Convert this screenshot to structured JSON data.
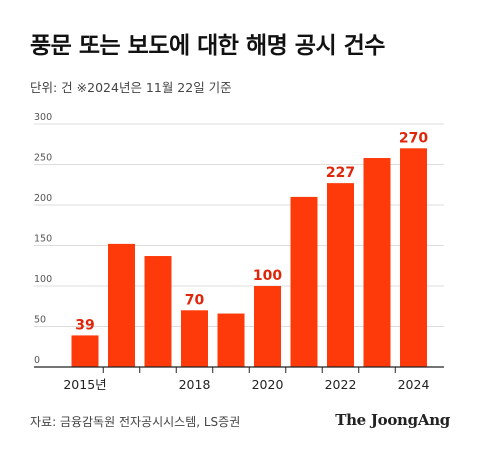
{
  "title": "풍문 또는 보도에 대한 해명 공시 건수",
  "subtitle": "단위: 건   ※2024년은 11월 22일 기준",
  "source": "자료: 금융감독원 전자공시시스템, LS증권",
  "brand": "The JoongAng",
  "colors": {
    "bar": "#ff3a0a",
    "label": "#e0260a",
    "grid": "#dddddd"
  },
  "chart_data": {
    "type": "bar",
    "categories": [
      "2015",
      "2016",
      "2017",
      "2018",
      "2019",
      "2020",
      "2021",
      "2022",
      "2023",
      "2024"
    ],
    "values": [
      39,
      152,
      137,
      70,
      66,
      100,
      210,
      227,
      258,
      270
    ],
    "ylim": [
      0,
      300
    ],
    "yticks": [
      0,
      50,
      100,
      150,
      200,
      250,
      300
    ],
    "xtick_labels": [
      "2015년",
      "",
      "",
      "2018",
      "",
      "2020",
      "",
      "2022",
      "",
      "2024"
    ],
    "data_labels": [
      "39",
      "",
      "",
      "70",
      "",
      "100",
      "",
      "227",
      "",
      "270"
    ],
    "grid": true
  }
}
